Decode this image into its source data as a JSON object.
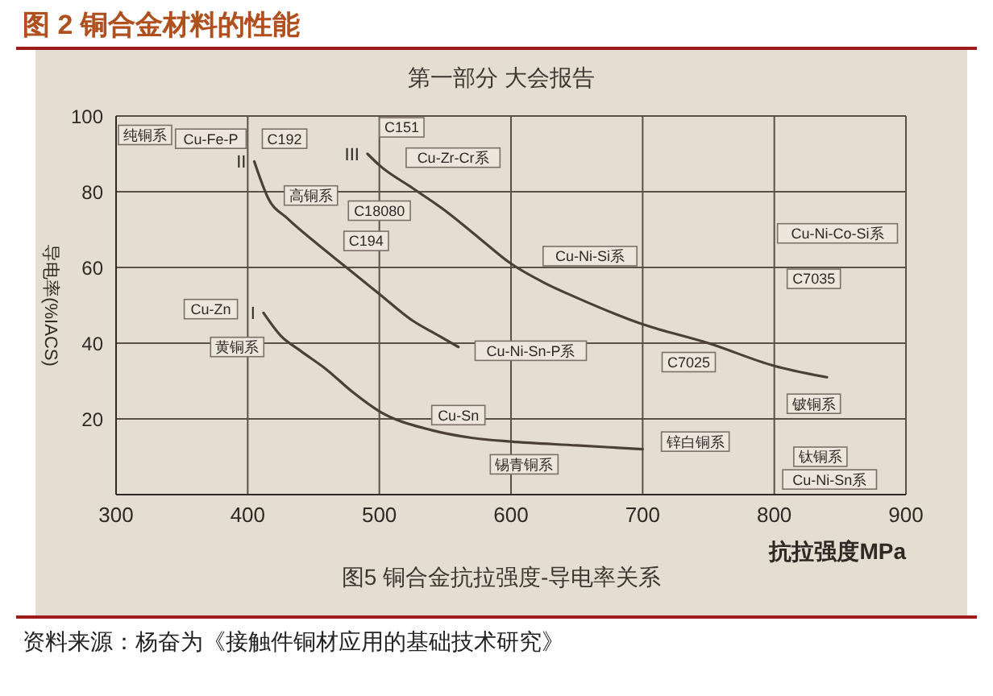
{
  "chart_data": {
    "type": "line",
    "title": "图 2 铜合金材料的性能",
    "subtitle": "图5 铜合金抗拉强度-导电率关系",
    "xlabel": "抗拉强度MPa",
    "ylabel": "导电率(%IACS)",
    "series": [
      {
        "name": "I",
        "color": "#4a4038",
        "x": [
          412,
          425,
          440,
          460,
          480,
          500,
          540,
          570,
          600,
          650,
          700
        ],
        "values": [
          48,
          42,
          38,
          33,
          27,
          22,
          17,
          15,
          14,
          13,
          12
        ]
      },
      {
        "name": "II",
        "color": "#4a4038",
        "x": [
          405,
          416,
          430,
          450,
          475,
          500,
          525,
          545,
          560
        ],
        "values": [
          88,
          78,
          73,
          67,
          60,
          53,
          46,
          42,
          39
        ]
      },
      {
        "name": "III",
        "color": "#4a4038",
        "x": [
          491,
          500,
          525,
          550,
          575,
          600,
          625,
          650,
          700,
          750,
          800,
          840
        ],
        "values": [
          90,
          87,
          81,
          75,
          68,
          61,
          56,
          52,
          45,
          40,
          34,
          31
        ]
      }
    ],
    "xlim": [
      300,
      900
    ],
    "xticks": [
      300,
      400,
      500,
      600,
      700,
      800,
      900
    ],
    "ylim": [
      0,
      100
    ],
    "yticks": [
      20,
      40,
      60,
      80,
      100
    ],
    "grid": true,
    "annotations": [
      "第一部分 大会报告",
      {
        "text": "纯铜系",
        "x": 322,
        "y": 95
      },
      {
        "text": "C192",
        "x": 428,
        "y": 94
      },
      {
        "text": "C151",
        "x": 517,
        "y": 97
      },
      {
        "text": "C18080",
        "x": 500,
        "y": 75
      },
      {
        "text": "高铜系",
        "x": 448,
        "y": 79
      },
      {
        "text": "C194",
        "x": 490,
        "y": 67
      },
      {
        "text": "Cu-Zn",
        "x": 372,
        "y": 49
      },
      {
        "text": "黄铜系",
        "x": 392,
        "y": 39
      },
      {
        "text": "C7025",
        "x": 735,
        "y": 35
      },
      {
        "text": "C7035",
        "x": 830,
        "y": 57
      },
      {
        "text": "铍铜系",
        "x": 830,
        "y": 24
      },
      {
        "text": "Cu-Sn",
        "x": 560,
        "y": 21
      },
      {
        "text": "钛铜系",
        "x": 835,
        "y": 10
      },
      "Cu-Fe-P",
      "Cu-Zr-Cr系",
      "Cu-Ni-Si系",
      "Cu-Ni-Sn-P系",
      "Cu-Ni-Co-Si系",
      "锡青铜系",
      "锌白铜系",
      "Cu-Ni-Sn系",
      "资料来源：杨奋为《接触件铜材应用的基础技术研究》"
    ]
  }
}
